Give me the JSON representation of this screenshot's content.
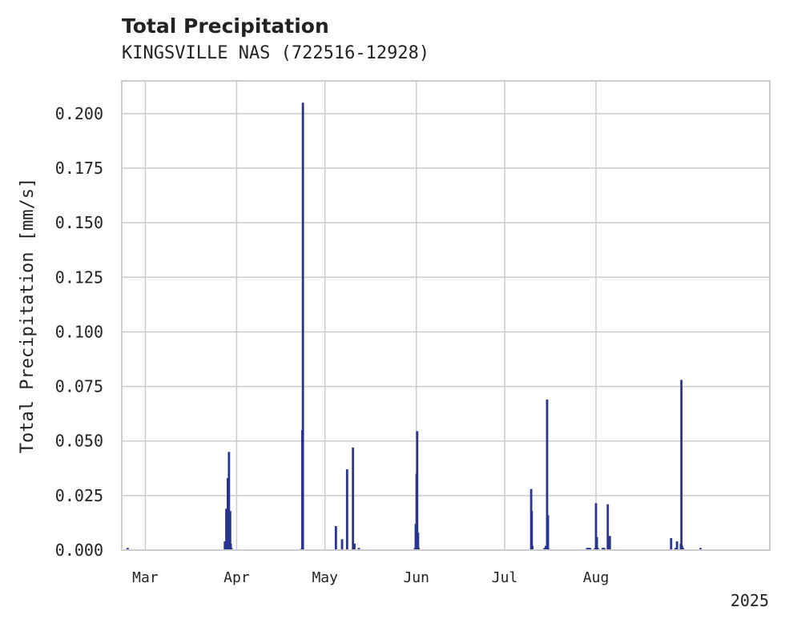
{
  "chart_data": {
    "type": "bar",
    "title": "Total Precipitation",
    "subtitle": "KINGSVILLE NAS (722516-12928)",
    "ylabel": "Total Precipitation [mm/s]",
    "xlabel": "",
    "year_label": "2025",
    "ylim": [
      0,
      0.215
    ],
    "yticks": [
      0.0,
      0.025,
      0.05,
      0.075,
      0.1,
      0.125,
      0.15,
      0.175,
      0.2
    ],
    "ytick_labels": [
      "0.000",
      "0.025",
      "0.050",
      "0.075",
      "0.100",
      "0.125",
      "0.150",
      "0.175",
      "0.200"
    ],
    "xlim_days": [
      -8,
      212
    ],
    "month_ticks": [
      {
        "label": "Mar",
        "day": 0
      },
      {
        "label": "Apr",
        "day": 31
      },
      {
        "label": "May",
        "day": 61
      },
      {
        "label": "Jun",
        "day": 92
      },
      {
        "label": "Jul",
        "day": 122
      },
      {
        "label": "Aug",
        "day": 153
      }
    ],
    "bar_color": "#27358f",
    "grid": true,
    "series": [
      {
        "name": "Total Precipitation",
        "day": [
          -6,
          27.0,
          27.5,
          28.0,
          28.4,
          28.8,
          29.0,
          29.2,
          29.5,
          29.8,
          53.0,
          53.3,
          53.5,
          64.7,
          66.8,
          68.5,
          70.5,
          71.0,
          72.5,
          91.5,
          91.8,
          92.1,
          92.3,
          92.6,
          92.8,
          131.0,
          131.2,
          131.4,
          135.5,
          136.0,
          136.4,
          136.7,
          137.0,
          137.5,
          138.0,
          150.0,
          150.3,
          150.5,
          151.0,
          152.7,
          153.0,
          153.3,
          153.6,
          155.3,
          155.5,
          155.8,
          157.0,
          157.3,
          157.7,
          178.5,
          180.0,
          180.5,
          181.8,
          182.0,
          182.2,
          182.5,
          188.5
        ],
        "values": [
          0.001,
          0.004,
          0.019,
          0.033,
          0.045,
          0.018,
          0.003,
          0.001,
          0.0005,
          0.0003,
          0.0006,
          0.055,
          0.205,
          0.011,
          0.005,
          0.037,
          0.047,
          0.003,
          0.001,
          0.001,
          0.012,
          0.035,
          0.0545,
          0.008,
          0.001,
          0.028,
          0.018,
          0.002,
          0.001,
          0.002,
          0.069,
          0.016,
          0.0005,
          0.0003,
          0.0002,
          0.001,
          0.001,
          0.001,
          0.001,
          0.001,
          0.0215,
          0.006,
          0.001,
          0.001,
          0.001,
          0.001,
          0.021,
          0.003,
          0.0065,
          0.0055,
          0.001,
          0.004,
          0.003,
          0.078,
          0.002,
          0.001,
          0.001
        ]
      }
    ]
  }
}
